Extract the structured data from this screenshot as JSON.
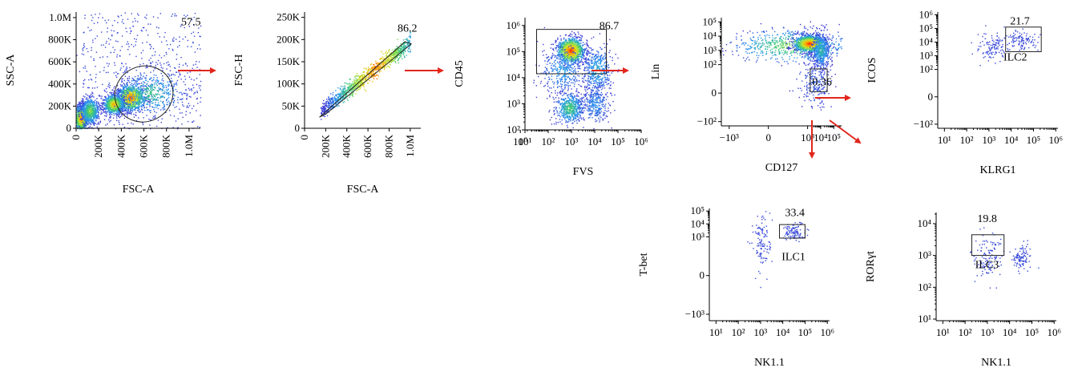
{
  "colors": {
    "arrow": "#e2261c",
    "density_low": "#3b3bd6",
    "density_high": "#ff1a00",
    "axis": "#000000"
  },
  "chart_data": [
    {
      "id": "p1",
      "type": "scatter",
      "title": "",
      "xlabel": "FSC-A",
      "ylabel": "SSC-A",
      "xlim": [
        0,
        1100000
      ],
      "ylim": [
        0,
        1050000
      ],
      "x_ticks": [
        {
          "v": 0,
          "t": "0"
        },
        {
          "v": 200000,
          "t": "200K"
        },
        {
          "v": 400000,
          "t": "400K"
        },
        {
          "v": 600000,
          "t": "600K"
        },
        {
          "v": 800000,
          "t": "800K"
        },
        {
          "v": 1000000,
          "t": "1.0M"
        }
      ],
      "y_ticks": [
        {
          "v": 0,
          "t": "0"
        },
        {
          "v": 200000,
          "t": "200K"
        },
        {
          "v": 400000,
          "t": "400K"
        },
        {
          "v": 600000,
          "t": "600K"
        },
        {
          "v": 800000,
          "t": "800K"
        },
        {
          "v": 1000000,
          "t": "1.0M"
        }
      ],
      "x_tick_rotate": true,
      "populations": [
        {
          "x": [
            0,
            1100000
          ],
          "y": [
            0,
            1050000
          ],
          "density": 0.12,
          "shape": "uniform"
        },
        {
          "x": [
            50000,
            1100000
          ],
          "y": [
            200000,
            1050000
          ],
          "density": 0.15,
          "shape": "upper"
        },
        {
          "x": [
            480000,
            60000
          ],
          "y": [
            280000,
            60000
          ],
          "density": 0.95
        },
        {
          "x": [
            330000,
            45000
          ],
          "y": [
            220000,
            45000
          ],
          "density": 0.8
        },
        {
          "x": [
            40000,
            30000
          ],
          "y": [
            90000,
            60000
          ],
          "density": 0.9
        },
        {
          "x": [
            120000,
            40000
          ],
          "y": [
            160000,
            60000
          ],
          "density": 0.55
        },
        {
          "x": [
            650000,
            150000
          ],
          "y": [
            320000,
            100000
          ],
          "density": 0.4
        }
      ],
      "gates": [
        {
          "shape": "ellipse",
          "cx": 600000,
          "cy": 310000,
          "rx": 520000,
          "ry": 250000,
          "rot": -25,
          "label": "57.5",
          "label_pos": [
            930000,
            930000
          ]
        }
      ]
    },
    {
      "id": "p2",
      "type": "scatter",
      "title": "",
      "xlabel": "FSC-A",
      "ylabel": "FSC-H",
      "xlim": [
        0,
        1100000
      ],
      "ylim": [
        0,
        262000
      ],
      "x_ticks": [
        {
          "v": 0,
          "t": "0"
        },
        {
          "v": 200000,
          "t": "200K"
        },
        {
          "v": 400000,
          "t": "400K"
        },
        {
          "v": 600000,
          "t": "600K"
        },
        {
          "v": 800000,
          "t": "800K"
        },
        {
          "v": 1000000,
          "t": "1.0M"
        }
      ],
      "y_ticks": [
        {
          "v": 0,
          "t": "0"
        },
        {
          "v": 50000,
          "t": "50K"
        },
        {
          "v": 100000,
          "t": "100K"
        },
        {
          "v": 150000,
          "t": "150K"
        },
        {
          "v": 200000,
          "t": "200K"
        },
        {
          "v": 250000,
          "t": "250K"
        }
      ],
      "x_tick_rotate": true,
      "populations": [
        {
          "shape": "diag",
          "x": [
            150000,
            1000000
          ],
          "y": [
            40000,
            195000
          ],
          "spread": 9000,
          "density": 1.0
        }
      ],
      "gates": [
        {
          "shape": "polygon",
          "points": [
            [
              140000,
              25000
            ],
            [
              950000,
              195000
            ],
            [
              1010000,
              190000
            ],
            [
              200000,
              32000
            ]
          ],
          "label": "86.2",
          "label_pos": [
            880000,
            218000
          ]
        }
      ]
    },
    {
      "id": "p3",
      "type": "scatter",
      "title": "",
      "xlabel": "FVS",
      "ylabel": "CD45",
      "xscale": "log",
      "yscale": "log",
      "xlim": [
        1,
        6
      ],
      "ylim": [
        2,
        6.3
      ],
      "x_ticks": [
        {
          "v": 0.8,
          "t": "10⁰"
        },
        {
          "v": 1,
          "t": "10¹"
        },
        {
          "v": 2,
          "t": "10²"
        },
        {
          "v": 3,
          "t": "10³"
        },
        {
          "v": 4,
          "t": "10⁴"
        },
        {
          "v": 5,
          "t": "10⁵"
        },
        {
          "v": 6,
          "t": "10⁶"
        }
      ],
      "y_ticks": [
        {
          "v": 2,
          "t": "10²"
        },
        {
          "v": 3,
          "t": "10³"
        },
        {
          "v": 4,
          "t": "10⁴"
        },
        {
          "v": 5,
          "t": "10⁵"
        },
        {
          "v": 6,
          "t": "10⁶"
        }
      ],
      "x_tick_rotate": false,
      "populations": [
        {
          "x": [
            2.95,
            0.3
          ],
          "y": [
            5.05,
            0.25
          ],
          "density": 1.0
        },
        {
          "x": [
            2.6,
            0.45
          ],
          "y": [
            4.3,
            0.45
          ],
          "density": 0.25
        },
        {
          "x": [
            4.1,
            0.3
          ],
          "y": [
            4.3,
            0.45
          ],
          "density": 0.3
        },
        {
          "x": [
            2.9,
            0.3
          ],
          "y": [
            2.85,
            0.3
          ],
          "density": 0.45
        },
        {
          "x": [
            4.0,
            0.3
          ],
          "y": [
            3.0,
            0.35
          ],
          "density": 0.2
        }
      ],
      "gates": [
        {
          "shape": "rect",
          "x0": 1.5,
          "x1": 4.5,
          "y0": 4.15,
          "y1": 5.85,
          "label": "86.7",
          "label_pos": [
            4.2,
            5.85
          ]
        }
      ]
    },
    {
      "id": "p4",
      "type": "scatter",
      "title": "",
      "xlabel": "CD127",
      "ylabel": "Lin",
      "xscale": "biexp",
      "yscale": "biexp",
      "xlim": [
        -3.6,
        5.6
      ],
      "ylim": [
        -2.3,
        5.3
      ],
      "x_ticks": [
        {
          "v": -3,
          "t": "−10³"
        },
        {
          "v": 0,
          "t": "0"
        },
        {
          "v": 3,
          "t": "10³"
        },
        {
          "v": 4,
          "t": "10⁴"
        },
        {
          "v": 5,
          "t": "10⁵"
        }
      ],
      "y_ticks": [
        {
          "v": -2,
          "t": "−10²"
        },
        {
          "v": 0,
          "t": "0"
        },
        {
          "v": 2,
          "t": "10²"
        },
        {
          "v": 3,
          "t": "10³"
        },
        {
          "v": 4,
          "t": "10⁴"
        },
        {
          "v": 5,
          "t": "10⁵"
        }
      ],
      "x_tick_rotate": false,
      "populations": [
        {
          "x": [
            1.8,
            2.3
          ],
          "y": [
            3.35,
            0.6
          ],
          "density": 0.55
        },
        {
          "x": [
            3.1,
            0.6
          ],
          "y": [
            3.5,
            0.3
          ],
          "density": 1.0
        },
        {
          "x": [
            4.0,
            0.35
          ],
          "y": [
            3.0,
            0.6
          ],
          "density": 0.35
        },
        {
          "x": [
            3.5,
            0.6
          ],
          "y": [
            0.9,
            0.9
          ],
          "density": 0.08
        }
      ],
      "gates": [
        {
          "shape": "rect",
          "x0": 3.2,
          "x1": 4.5,
          "y0": 0.1,
          "y1": 1.7,
          "label": "0.36",
          "label_pos": [
            3.35,
            0.55
          ]
        }
      ]
    },
    {
      "id": "p5",
      "type": "scatter",
      "title": "",
      "xlabel": "KLRG1",
      "ylabel": "ICOS",
      "xscale": "log",
      "yscale": "biexp",
      "xlim": [
        0.7,
        6.1
      ],
      "ylim": [
        -2.3,
        6.2
      ],
      "x_ticks": [
        {
          "v": 1,
          "t": "10¹"
        },
        {
          "v": 2,
          "t": "10²"
        },
        {
          "v": 3,
          "t": "10³"
        },
        {
          "v": 4,
          "t": "10⁴"
        },
        {
          "v": 5,
          "t": "10⁵"
        },
        {
          "v": 6,
          "t": "10⁶"
        }
      ],
      "y_ticks": [
        {
          "v": -2,
          "t": "−10²"
        },
        {
          "v": 0,
          "t": "0"
        },
        {
          "v": 2,
          "t": "10²"
        },
        {
          "v": 3,
          "t": "10³"
        },
        {
          "v": 4,
          "t": "10⁴"
        },
        {
          "v": 5,
          "t": "10⁵"
        },
        {
          "v": 6,
          "t": "10⁶"
        }
      ],
      "x_tick_rotate": false,
      "populations": [
        {
          "x": [
            3.1,
            0.4
          ],
          "y": [
            3.7,
            0.55
          ],
          "density": 0.35,
          "sparse": true
        },
        {
          "x": [
            4.4,
            0.35
          ],
          "y": [
            4.1,
            0.35
          ],
          "density": 0.3,
          "sparse": true
        }
      ],
      "gates": [
        {
          "shape": "rect",
          "x0": 3.75,
          "x1": 5.35,
          "y0": 3.3,
          "y1": 5.1,
          "label": "21.7",
          "label_pos": [
            3.95,
            5.3
          ],
          "name": "ILC2",
          "name_pos": [
            3.65,
            2.65
          ]
        }
      ]
    },
    {
      "id": "p6",
      "type": "scatter",
      "title": "",
      "xlabel": "NK1.1",
      "ylabel": "T-bet",
      "xscale": "log",
      "yscale": "biexp",
      "xlim": [
        0.7,
        6.1
      ],
      "ylim": [
        -3.5,
        5.2
      ],
      "x_ticks": [
        {
          "v": 1,
          "t": "10¹"
        },
        {
          "v": 2,
          "t": "10²"
        },
        {
          "v": 3,
          "t": "10³"
        },
        {
          "v": 4,
          "t": "10⁴"
        },
        {
          "v": 5,
          "t": "10⁵"
        },
        {
          "v": 6,
          "t": "10⁶"
        }
      ],
      "y_ticks": [
        {
          "v": -3,
          "t": "−10³"
        },
        {
          "v": 0,
          "t": "0"
        },
        {
          "v": 3,
          "t": "10³"
        },
        {
          "v": 4,
          "t": "10⁴"
        },
        {
          "v": 5,
          "t": "10⁵"
        }
      ],
      "x_tick_rotate": false,
      "populations": [
        {
          "x": [
            3.05,
            0.2
          ],
          "y": [
            2.5,
            1.2
          ],
          "density": 0.35,
          "sparse": true
        },
        {
          "x": [
            4.45,
            0.25
          ],
          "y": [
            3.45,
            0.35
          ],
          "density": 0.3,
          "sparse": true
        }
      ],
      "gates": [
        {
          "shape": "rect",
          "x0": 3.85,
          "x1": 5.0,
          "y0": 2.9,
          "y1": 3.95,
          "label": "33.4",
          "label_pos": [
            4.1,
            4.6
          ],
          "name": "ILC1",
          "name_pos": [
            3.95,
            1.2
          ]
        }
      ]
    },
    {
      "id": "p7",
      "type": "scatter",
      "title": "",
      "xlabel": "NK1.1",
      "ylabel": "RORγt",
      "xscale": "log",
      "yscale": "log",
      "xlim": [
        0.7,
        6.1
      ],
      "ylim": [
        0.95,
        4.35
      ],
      "x_ticks": [
        {
          "v": 1,
          "t": "10¹"
        },
        {
          "v": 2,
          "t": "10²"
        },
        {
          "v": 3,
          "t": "10³"
        },
        {
          "v": 4,
          "t": "10⁴"
        },
        {
          "v": 5,
          "t": "10⁵"
        },
        {
          "v": 6,
          "t": "10⁶"
        }
      ],
      "y_ticks": [
        {
          "v": 1,
          "t": "10¹"
        },
        {
          "v": 2,
          "t": "10²"
        },
        {
          "v": 3,
          "t": "10³"
        },
        {
          "v": 4,
          "t": "10⁴"
        }
      ],
      "x_tick_rotate": false,
      "populations": [
        {
          "x": [
            3.05,
            0.35
          ],
          "y": [
            3.0,
            0.35
          ],
          "density": 0.4,
          "sparse": true
        },
        {
          "x": [
            4.5,
            0.2
          ],
          "y": [
            2.95,
            0.2
          ],
          "density": 0.25,
          "sparse": true
        }
      ],
      "gates": [
        {
          "shape": "rect",
          "x0": 2.3,
          "x1": 3.75,
          "y0": 3.0,
          "y1": 3.65,
          "label": "19.8",
          "label_pos": [
            2.55,
            4.05
          ],
          "name": "ILC3",
          "name_pos": [
            2.45,
            2.6
          ]
        }
      ]
    }
  ]
}
